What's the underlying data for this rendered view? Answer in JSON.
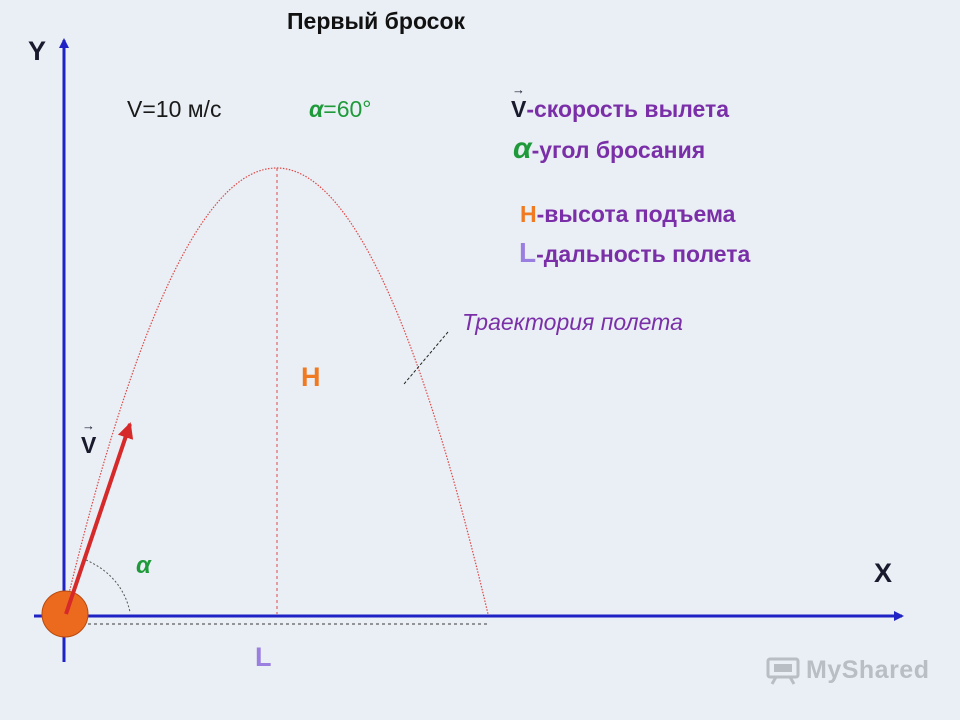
{
  "title": "Первый бросок",
  "axes": {
    "y_label": "Y",
    "x_label": "X"
  },
  "given": {
    "speed": "V=10 м/с",
    "angle_symbol": "α",
    "angle_value": "=60°"
  },
  "legend": [
    {
      "key": "V",
      "text": "-скорость вылета"
    },
    {
      "key": "α",
      "text": "-угол бросания"
    },
    {
      "key": "H",
      "text": "-высота подъема"
    },
    {
      "key": "L",
      "text": "-дальность полета"
    }
  ],
  "diagram_labels": {
    "trajectory": "Траектория полета",
    "height": "H",
    "range": "L",
    "velocity": "V",
    "angle": "α"
  },
  "watermark": "MyShared",
  "colors": {
    "axis": "#1f22c4",
    "velocity_vector": "#d62a2a",
    "trajectory": "#e04848",
    "ball": "#ec6a1e",
    "height_accent": "#f07a22",
    "range_accent": "#9b7fe0",
    "angle_accent": "#1e9a3a",
    "legend_text": "#7a2fa8"
  }
}
